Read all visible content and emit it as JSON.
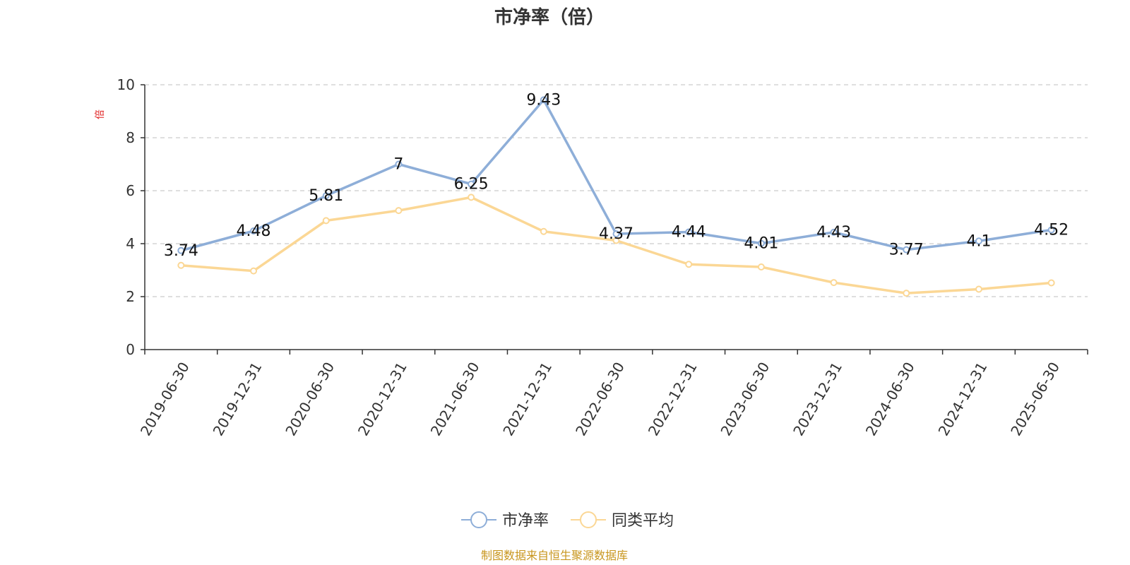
{
  "chart_data": {
    "type": "line",
    "title": "市净率（倍）",
    "y_unit": "倍",
    "ylim": [
      0,
      10
    ],
    "yticks": [
      0,
      2,
      4,
      6,
      8,
      10
    ],
    "grid": true,
    "legend_position": "bottom",
    "categories": [
      "2019-06-30",
      "2019-12-31",
      "2020-06-30",
      "2020-12-31",
      "2021-06-30",
      "2021-12-31",
      "2022-06-30",
      "2022-12-31",
      "2023-06-30",
      "2023-12-31",
      "2024-06-30",
      "2024-12-31",
      "2025-06-30"
    ],
    "series": [
      {
        "name": "市净率",
        "color": "#8eaed8",
        "values": [
          3.74,
          4.48,
          5.81,
          7,
          6.25,
          9.43,
          4.37,
          4.44,
          4.01,
          4.43,
          3.77,
          4.1,
          4.52
        ],
        "data_labels": [
          "3.74",
          "4.48",
          "5.81",
          "7",
          "6.25",
          "9.43",
          "4.37",
          "4.44",
          "4.01",
          "4.43",
          "3.77",
          "4.1",
          "4.52"
        ]
      },
      {
        "name": "同类平均",
        "color": "#fbd795",
        "values": [
          3.18,
          2.97,
          4.87,
          5.25,
          5.75,
          4.46,
          4.12,
          3.22,
          3.12,
          2.53,
          2.13,
          2.28,
          2.52
        ]
      }
    ]
  },
  "source_text": "制图数据来自恒生聚源数据库"
}
